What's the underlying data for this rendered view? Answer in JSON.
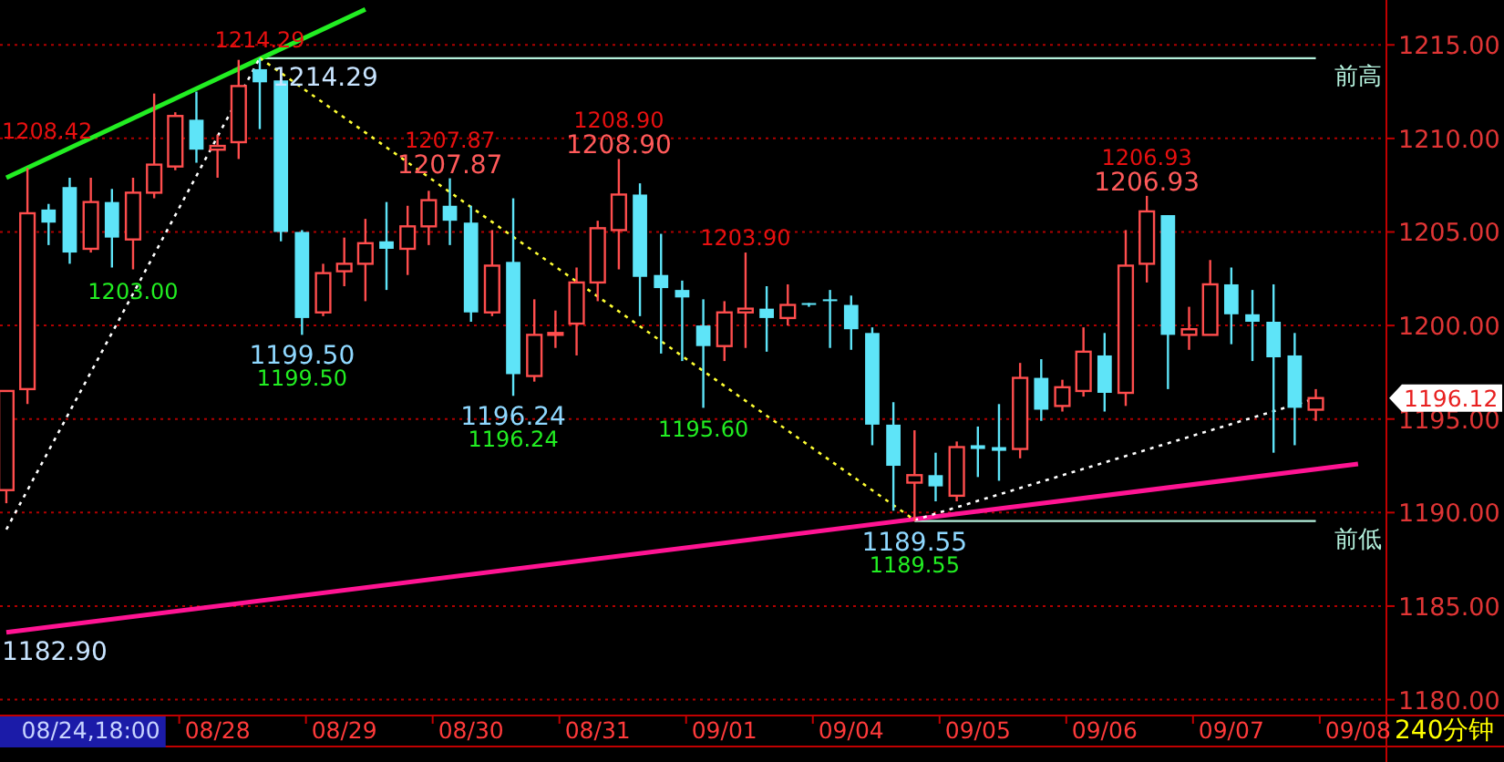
{
  "chart_data": {
    "type": "candlestick",
    "categories": [
      null,
      null,
      null,
      null,
      "08/24,18:00",
      null,
      null,
      null,
      null,
      null,
      "08/28",
      null,
      null,
      null,
      null,
      null,
      "08/29",
      null,
      null,
      null,
      null,
      null,
      "08/30",
      null,
      null,
      null,
      null,
      null,
      "08/31",
      null,
      null,
      null,
      null,
      null,
      "09/01",
      null,
      null,
      null,
      null,
      null,
      "09/04",
      null,
      null,
      null,
      null,
      null,
      "09/05",
      null,
      null,
      null,
      null,
      null,
      "09/06",
      null,
      null,
      null,
      null,
      null,
      "09/07",
      null,
      null,
      null,
      null,
      null,
      "09/08"
    ],
    "ohlc": [
      [
        1191.2,
        1196.5,
        1190.5,
        1196.5
      ],
      [
        1196.6,
        1208.42,
        1195.8,
        1206.0
      ],
      [
        1206.2,
        1206.5,
        1204.3,
        1205.5
      ],
      [
        1207.4,
        1207.9,
        1203.3,
        1203.9
      ],
      [
        1204.1,
        1207.9,
        1203.9,
        1206.6
      ],
      [
        1206.6,
        1207.3,
        1203.1,
        1204.7
      ],
      [
        1204.6,
        1207.9,
        1203.0,
        1207.1
      ],
      [
        1207.1,
        1212.4,
        1206.8,
        1208.6
      ],
      [
        1208.5,
        1211.4,
        1208.3,
        1211.2
      ],
      [
        1211.0,
        1212.5,
        1208.7,
        1209.4
      ],
      [
        1209.4,
        1210.2,
        1207.9,
        1209.6
      ],
      [
        1209.8,
        1214.2,
        1208.9,
        1212.8
      ],
      [
        1213.7,
        1214.29,
        1210.5,
        1213.0
      ],
      [
        1213.1,
        1213.3,
        1204.5,
        1205.0
      ],
      [
        1205.0,
        1205.1,
        1199.5,
        1200.4
      ],
      [
        1200.7,
        1203.3,
        1200.5,
        1202.8
      ],
      [
        1202.9,
        1204.7,
        1202.1,
        1203.3
      ],
      [
        1203.3,
        1205.7,
        1201.3,
        1204.4
      ],
      [
        1204.5,
        1206.6,
        1201.9,
        1204.1
      ],
      [
        1204.1,
        1206.4,
        1202.7,
        1205.3
      ],
      [
        1205.3,
        1207.2,
        1204.3,
        1206.7
      ],
      [
        1206.4,
        1207.87,
        1204.3,
        1205.6
      ],
      [
        1205.5,
        1206.4,
        1200.2,
        1200.7
      ],
      [
        1200.7,
        1205.1,
        1200.5,
        1203.2
      ],
      [
        1203.4,
        1206.8,
        1196.24,
        1197.4
      ],
      [
        1197.3,
        1201.4,
        1197.0,
        1199.5
      ],
      [
        1199.5,
        1200.8,
        1198.8,
        1199.6
      ],
      [
        1200.1,
        1203.1,
        1198.4,
        1202.3
      ],
      [
        1202.3,
        1205.6,
        1201.3,
        1205.2
      ],
      [
        1205.1,
        1208.9,
        1203.0,
        1207.0
      ],
      [
        1207.0,
        1207.6,
        1200.5,
        1202.6
      ],
      [
        1202.7,
        1204.9,
        1198.5,
        1202.0
      ],
      [
        1201.9,
        1202.4,
        1198.1,
        1201.5
      ],
      [
        1200.0,
        1201.4,
        1195.6,
        1198.9
      ],
      [
        1198.9,
        1201.3,
        1198.1,
        1200.7
      ],
      [
        1200.7,
        1203.9,
        1198.8,
        1200.9
      ],
      [
        1200.9,
        1202.1,
        1198.6,
        1200.4
      ],
      [
        1200.4,
        1202.2,
        1200.0,
        1201.1
      ],
      [
        1201.2,
        1201.2,
        1201.0,
        1201.1
      ],
      [
        1201.4,
        1201.9,
        1198.8,
        1201.3
      ],
      [
        1201.1,
        1201.6,
        1198.7,
        1199.8
      ],
      [
        1199.6,
        1199.9,
        1193.6,
        1194.7
      ],
      [
        1194.7,
        1195.9,
        1190.1,
        1192.5
      ],
      [
        1191.6,
        1194.4,
        1189.55,
        1192.0
      ],
      [
        1192.0,
        1193.2,
        1190.6,
        1191.4
      ],
      [
        1190.9,
        1193.8,
        1190.6,
        1193.5
      ],
      [
        1193.6,
        1194.6,
        1191.9,
        1193.4
      ],
      [
        1193.5,
        1195.8,
        1191.7,
        1193.3
      ],
      [
        1193.4,
        1198.0,
        1192.9,
        1197.2
      ],
      [
        1197.2,
        1198.2,
        1194.9,
        1195.5
      ],
      [
        1195.7,
        1197.1,
        1195.4,
        1196.7
      ],
      [
        1196.5,
        1199.9,
        1196.2,
        1198.6
      ],
      [
        1198.4,
        1199.6,
        1195.4,
        1196.4
      ],
      [
        1196.4,
        1205.1,
        1195.7,
        1203.2
      ],
      [
        1203.3,
        1206.93,
        1202.3,
        1206.1
      ],
      [
        1205.9,
        1205.9,
        1196.6,
        1199.5
      ],
      [
        1199.5,
        1201.0,
        1198.7,
        1199.8
      ],
      [
        1199.5,
        1203.5,
        1199.5,
        1202.2
      ],
      [
        1202.2,
        1203.1,
        1199.0,
        1200.6
      ],
      [
        1200.6,
        1201.9,
        1198.1,
        1200.2
      ],
      [
        1200.2,
        1202.2,
        1193.2,
        1198.3
      ],
      [
        1198.4,
        1199.6,
        1193.6,
        1195.6
      ],
      [
        1195.5,
        1196.6,
        1194.9,
        1196.12
      ],
      null,
      null
    ],
    "series": [
      {
        "type": "line",
        "values": [
          1207.9,
          null,
          null,
          null,
          null,
          null,
          null,
          null,
          null,
          null,
          null,
          null,
          null,
          null,
          null,
          null,
          null,
          1216.9,
          null,
          null,
          null,
          null,
          null,
          null,
          null,
          null,
          null,
          null,
          null,
          null,
          null,
          null,
          null,
          null,
          null,
          null,
          null,
          null,
          null,
          null,
          null,
          null,
          null,
          null,
          null,
          null,
          null,
          null,
          null,
          null,
          null,
          null,
          null,
          null,
          null,
          null,
          null,
          null,
          null,
          null,
          null,
          null,
          null,
          null,
          null
        ],
        "color": "#22ee22",
        "line_style": "solid"
      },
      {
        "type": "line",
        "values": [
          1183.6,
          null,
          null,
          null,
          null,
          null,
          null,
          null,
          null,
          null,
          null,
          null,
          null,
          null,
          null,
          null,
          null,
          null,
          null,
          null,
          null,
          null,
          null,
          null,
          null,
          null,
          null,
          null,
          null,
          null,
          null,
          null,
          null,
          null,
          null,
          null,
          null,
          null,
          null,
          null,
          null,
          null,
          null,
          null,
          null,
          null,
          null,
          null,
          null,
          null,
          null,
          null,
          null,
          null,
          null,
          null,
          null,
          null,
          null,
          null,
          null,
          null,
          null,
          null,
          1192.6
        ],
        "color": "#ff1493",
        "line_style": "solid"
      },
      {
        "type": "line",
        "values": [
          1189.1,
          null,
          null,
          null,
          null,
          null,
          null,
          null,
          null,
          null,
          null,
          null,
          1214.3,
          null,
          null,
          null,
          null,
          null,
          null,
          null,
          null,
          null,
          null,
          null,
          null,
          null,
          null,
          null,
          null,
          null,
          null,
          null,
          null,
          null,
          null,
          null,
          null,
          null,
          null,
          null,
          null,
          null,
          null,
          null,
          null,
          null,
          null,
          null,
          null,
          null,
          null,
          null,
          null,
          null,
          null,
          null,
          null,
          null,
          null,
          null,
          null,
          null,
          null,
          null,
          null
        ],
        "color": "#ffffff",
        "line_style": "dotted"
      },
      {
        "type": "line",
        "values": [
          null,
          null,
          null,
          null,
          null,
          null,
          null,
          null,
          null,
          null,
          null,
          null,
          1214.3,
          null,
          null,
          null,
          null,
          null,
          null,
          null,
          null,
          null,
          null,
          null,
          null,
          null,
          null,
          null,
          null,
          null,
          null,
          null,
          null,
          null,
          null,
          null,
          null,
          null,
          null,
          null,
          null,
          null,
          null,
          1189.6,
          null,
          null,
          null,
          null,
          null,
          null,
          null,
          null,
          null,
          null,
          null,
          null,
          null,
          null,
          null,
          null,
          null,
          null,
          null,
          null,
          null
        ],
        "color": "#ffff33",
        "line_style": "dotted"
      },
      {
        "type": "line",
        "values": [
          null,
          null,
          null,
          null,
          null,
          null,
          null,
          null,
          null,
          null,
          null,
          null,
          null,
          null,
          null,
          null,
          null,
          null,
          null,
          null,
          null,
          null,
          null,
          null,
          null,
          null,
          null,
          null,
          null,
          null,
          null,
          null,
          null,
          null,
          null,
          null,
          null,
          null,
          null,
          null,
          null,
          null,
          null,
          1189.6,
          null,
          null,
          null,
          null,
          null,
          null,
          null,
          null,
          null,
          null,
          null,
          null,
          null,
          null,
          null,
          null,
          null,
          null,
          1196.1,
          null,
          null
        ],
        "color": "#ffffff",
        "line_style": "dotted"
      }
    ],
    "ylim": [
      1179.2,
      1217.4
    ],
    "yticks": [
      {
        "value": 1180,
        "label": "1180.00"
      },
      {
        "value": 1185,
        "label": "1185.00"
      },
      {
        "value": 1190,
        "label": "1190.00"
      },
      {
        "value": 1195,
        "label": "1195.00"
      },
      {
        "value": 1200,
        "label": "1200.00"
      },
      {
        "value": 1205,
        "label": "1205.00"
      },
      {
        "value": 1210,
        "label": "1210.00"
      },
      {
        "value": 1215,
        "label": "1215.00"
      }
    ],
    "grid": "y",
    "ref_lines": [
      {
        "axis": "y",
        "value": 1214.29,
        "label": "前高",
        "color": "#b4f0dc"
      },
      {
        "axis": "y",
        "value": 1189.55,
        "label": "前低",
        "color": "#b4f0dc"
      }
    ],
    "annotations": [
      {
        "text": "1214.29",
        "y": 1214.29
      },
      {
        "text": "1214.29",
        "y": 1214.29
      },
      {
        "text": "1208.42",
        "y": 1208.42
      },
      {
        "text": "1203.00",
        "y": 1203.0
      },
      {
        "text": "1199.50",
        "y": 1199.5
      },
      {
        "text": "1199.50",
        "y": 1199.5
      },
      {
        "text": "1207.87",
        "y": 1207.87
      },
      {
        "text": "1207.87",
        "y": 1207.87
      },
      {
        "text": "1196.24",
        "y": 1196.24
      },
      {
        "text": "1196.24",
        "y": 1196.24
      },
      {
        "text": "1208.90",
        "y": 1208.9
      },
      {
        "text": "1208.90",
        "y": 1208.9
      },
      {
        "text": "1203.90",
        "y": 1203.9
      },
      {
        "text": "1195.60",
        "y": 1195.6
      },
      {
        "text": "1189.55",
        "y": 1189.55
      },
      {
        "text": "1189.55",
        "y": 1189.55
      },
      {
        "text": "1206.93",
        "y": 1206.93
      },
      {
        "text": "1206.93",
        "y": 1206.93
      },
      "1182.90",
      "1196.12",
      "240分钟"
    ]
  }
}
